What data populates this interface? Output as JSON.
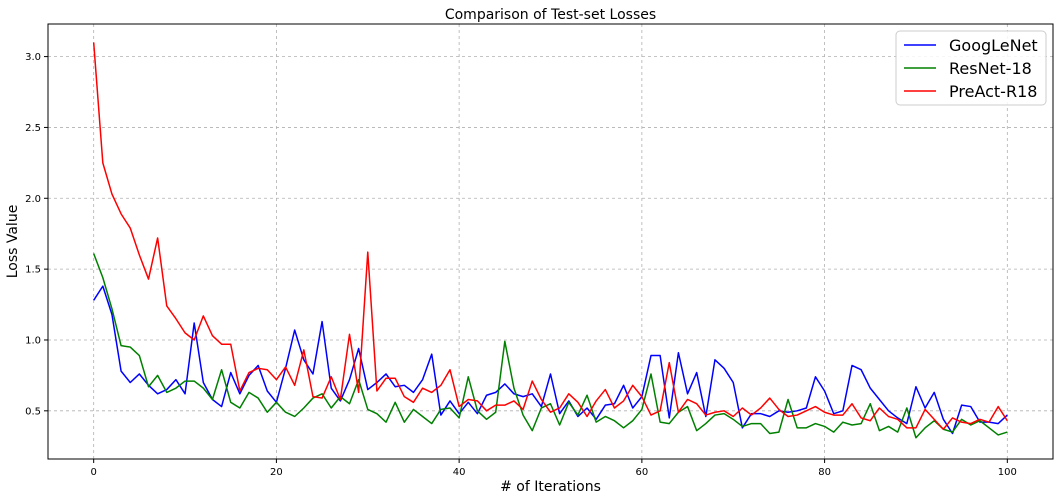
{
  "chart_data": {
    "type": "line",
    "title": "Comparison of Test-set Losses",
    "xlabel": "# of Iterations",
    "ylabel": "Loss Value",
    "xlim": [
      -5,
      105
    ],
    "ylim": [
      0.16,
      3.23
    ],
    "xticks": [
      0,
      20,
      40,
      60,
      80,
      100
    ],
    "yticks": [
      0.5,
      1.0,
      1.5,
      2.0,
      2.5,
      3.0
    ],
    "xtick_labels": [
      "0",
      "20",
      "40",
      "60",
      "80",
      "100"
    ],
    "ytick_labels": [
      "0.5",
      "1.0",
      "1.5",
      "2.0",
      "2.5",
      "3.0"
    ],
    "grid": true,
    "legend_position": "top-right",
    "series": [
      {
        "name": "GoogLeNet",
        "color": "#0000ff",
        "values": [
          1.28,
          1.38,
          1.18,
          0.78,
          0.7,
          0.76,
          0.68,
          0.62,
          0.65,
          0.72,
          0.62,
          1.12,
          0.7,
          0.58,
          0.53,
          0.77,
          0.62,
          0.75,
          0.82,
          0.64,
          0.56,
          0.8,
          1.07,
          0.86,
          0.76,
          1.13,
          0.66,
          0.57,
          0.72,
          0.94,
          0.65,
          0.7,
          0.76,
          0.67,
          0.68,
          0.63,
          0.72,
          0.9,
          0.47,
          0.57,
          0.48,
          0.56,
          0.48,
          0.61,
          0.63,
          0.69,
          0.62,
          0.6,
          0.62,
          0.53,
          0.76,
          0.48,
          0.57,
          0.46,
          0.52,
          0.44,
          0.54,
          0.55,
          0.68,
          0.52,
          0.6,
          0.89,
          0.89,
          0.45,
          0.91,
          0.62,
          0.77,
          0.46,
          0.86,
          0.8,
          0.7,
          0.38,
          0.48,
          0.48,
          0.46,
          0.5,
          0.49,
          0.5,
          0.52,
          0.74,
          0.64,
          0.48,
          0.5,
          0.82,
          0.79,
          0.66,
          0.58,
          0.5,
          0.45,
          0.41,
          0.67,
          0.52,
          0.63,
          0.44,
          0.34,
          0.54,
          0.53,
          0.42,
          0.42,
          0.41,
          0.47
        ]
      },
      {
        "name": "ResNet-18",
        "color": "#008000",
        "values": [
          1.61,
          1.44,
          1.22,
          0.96,
          0.95,
          0.89,
          0.67,
          0.75,
          0.63,
          0.66,
          0.71,
          0.71,
          0.66,
          0.58,
          0.79,
          0.56,
          0.52,
          0.63,
          0.59,
          0.49,
          0.56,
          0.49,
          0.46,
          0.52,
          0.59,
          0.62,
          0.52,
          0.6,
          0.55,
          0.72,
          0.51,
          0.48,
          0.42,
          0.56,
          0.42,
          0.51,
          0.46,
          0.41,
          0.51,
          0.52,
          0.45,
          0.74,
          0.5,
          0.44,
          0.49,
          0.99,
          0.66,
          0.47,
          0.36,
          0.52,
          0.55,
          0.4,
          0.56,
          0.47,
          0.61,
          0.42,
          0.46,
          0.43,
          0.38,
          0.43,
          0.51,
          0.76,
          0.42,
          0.41,
          0.49,
          0.53,
          0.36,
          0.41,
          0.47,
          0.48,
          0.44,
          0.39,
          0.41,
          0.41,
          0.34,
          0.35,
          0.58,
          0.38,
          0.38,
          0.41,
          0.39,
          0.35,
          0.42,
          0.4,
          0.41,
          0.55,
          0.36,
          0.39,
          0.35,
          0.52,
          0.31,
          0.38,
          0.43,
          0.37,
          0.35,
          0.44,
          0.4,
          0.43,
          0.38,
          0.33,
          0.35
        ]
      },
      {
        "name": "PreAct-R18",
        "color": "#ff0000",
        "values": [
          3.1,
          2.25,
          2.03,
          1.89,
          1.79,
          1.6,
          1.43,
          1.72,
          1.24,
          1.15,
          1.05,
          1.0,
          1.17,
          1.03,
          0.97,
          0.97,
          0.64,
          0.77,
          0.8,
          0.79,
          0.72,
          0.81,
          0.68,
          0.93,
          0.6,
          0.59,
          0.74,
          0.58,
          1.04,
          0.63,
          1.62,
          0.64,
          0.73,
          0.73,
          0.6,
          0.56,
          0.66,
          0.63,
          0.68,
          0.79,
          0.53,
          0.58,
          0.57,
          0.5,
          0.54,
          0.54,
          0.57,
          0.51,
          0.71,
          0.58,
          0.49,
          0.52,
          0.62,
          0.56,
          0.46,
          0.57,
          0.65,
          0.52,
          0.57,
          0.68,
          0.6,
          0.47,
          0.5,
          0.84,
          0.49,
          0.58,
          0.55,
          0.47,
          0.49,
          0.5,
          0.46,
          0.52,
          0.47,
          0.52,
          0.59,
          0.51,
          0.46,
          0.47,
          0.5,
          0.53,
          0.49,
          0.47,
          0.47,
          0.55,
          0.45,
          0.43,
          0.52,
          0.46,
          0.44,
          0.38,
          0.38,
          0.51,
          0.44,
          0.37,
          0.45,
          0.42,
          0.41,
          0.44,
          0.42,
          0.53,
          0.43
        ]
      }
    ]
  }
}
